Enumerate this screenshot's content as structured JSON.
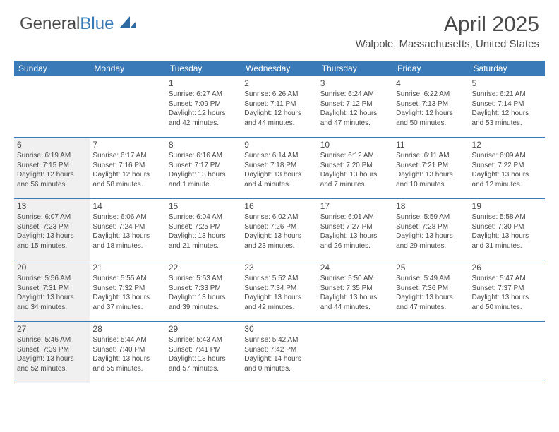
{
  "logo": {
    "part1": "General",
    "part2": "Blue"
  },
  "header": {
    "title": "April 2025",
    "location": "Walpole, Massachusetts, United States"
  },
  "colors": {
    "header_bg": "#3a7ab8",
    "header_text": "#ffffff",
    "body_text": "#4a4a4a",
    "shaded_bg": "#f0f0f0",
    "row_border": "#3a7ab8"
  },
  "day_names": [
    "Sunday",
    "Monday",
    "Tuesday",
    "Wednesday",
    "Thursday",
    "Friday",
    "Saturday"
  ],
  "weeks": [
    [
      {
        "num": "",
        "sunrise": "",
        "sunset": "",
        "daylight": "",
        "shaded": false
      },
      {
        "num": "",
        "sunrise": "",
        "sunset": "",
        "daylight": "",
        "shaded": false
      },
      {
        "num": "1",
        "sunrise": "Sunrise: 6:27 AM",
        "sunset": "Sunset: 7:09 PM",
        "daylight": "Daylight: 12 hours and 42 minutes.",
        "shaded": false
      },
      {
        "num": "2",
        "sunrise": "Sunrise: 6:26 AM",
        "sunset": "Sunset: 7:11 PM",
        "daylight": "Daylight: 12 hours and 44 minutes.",
        "shaded": false
      },
      {
        "num": "3",
        "sunrise": "Sunrise: 6:24 AM",
        "sunset": "Sunset: 7:12 PM",
        "daylight": "Daylight: 12 hours and 47 minutes.",
        "shaded": false
      },
      {
        "num": "4",
        "sunrise": "Sunrise: 6:22 AM",
        "sunset": "Sunset: 7:13 PM",
        "daylight": "Daylight: 12 hours and 50 minutes.",
        "shaded": false
      },
      {
        "num": "5",
        "sunrise": "Sunrise: 6:21 AM",
        "sunset": "Sunset: 7:14 PM",
        "daylight": "Daylight: 12 hours and 53 minutes.",
        "shaded": false
      }
    ],
    [
      {
        "num": "6",
        "sunrise": "Sunrise: 6:19 AM",
        "sunset": "Sunset: 7:15 PM",
        "daylight": "Daylight: 12 hours and 56 minutes.",
        "shaded": true
      },
      {
        "num": "7",
        "sunrise": "Sunrise: 6:17 AM",
        "sunset": "Sunset: 7:16 PM",
        "daylight": "Daylight: 12 hours and 58 minutes.",
        "shaded": false
      },
      {
        "num": "8",
        "sunrise": "Sunrise: 6:16 AM",
        "sunset": "Sunset: 7:17 PM",
        "daylight": "Daylight: 13 hours and 1 minute.",
        "shaded": false
      },
      {
        "num": "9",
        "sunrise": "Sunrise: 6:14 AM",
        "sunset": "Sunset: 7:18 PM",
        "daylight": "Daylight: 13 hours and 4 minutes.",
        "shaded": false
      },
      {
        "num": "10",
        "sunrise": "Sunrise: 6:12 AM",
        "sunset": "Sunset: 7:20 PM",
        "daylight": "Daylight: 13 hours and 7 minutes.",
        "shaded": false
      },
      {
        "num": "11",
        "sunrise": "Sunrise: 6:11 AM",
        "sunset": "Sunset: 7:21 PM",
        "daylight": "Daylight: 13 hours and 10 minutes.",
        "shaded": false
      },
      {
        "num": "12",
        "sunrise": "Sunrise: 6:09 AM",
        "sunset": "Sunset: 7:22 PM",
        "daylight": "Daylight: 13 hours and 12 minutes.",
        "shaded": false
      }
    ],
    [
      {
        "num": "13",
        "sunrise": "Sunrise: 6:07 AM",
        "sunset": "Sunset: 7:23 PM",
        "daylight": "Daylight: 13 hours and 15 minutes.",
        "shaded": true
      },
      {
        "num": "14",
        "sunrise": "Sunrise: 6:06 AM",
        "sunset": "Sunset: 7:24 PM",
        "daylight": "Daylight: 13 hours and 18 minutes.",
        "shaded": false
      },
      {
        "num": "15",
        "sunrise": "Sunrise: 6:04 AM",
        "sunset": "Sunset: 7:25 PM",
        "daylight": "Daylight: 13 hours and 21 minutes.",
        "shaded": false
      },
      {
        "num": "16",
        "sunrise": "Sunrise: 6:02 AM",
        "sunset": "Sunset: 7:26 PM",
        "daylight": "Daylight: 13 hours and 23 minutes.",
        "shaded": false
      },
      {
        "num": "17",
        "sunrise": "Sunrise: 6:01 AM",
        "sunset": "Sunset: 7:27 PM",
        "daylight": "Daylight: 13 hours and 26 minutes.",
        "shaded": false
      },
      {
        "num": "18",
        "sunrise": "Sunrise: 5:59 AM",
        "sunset": "Sunset: 7:28 PM",
        "daylight": "Daylight: 13 hours and 29 minutes.",
        "shaded": false
      },
      {
        "num": "19",
        "sunrise": "Sunrise: 5:58 AM",
        "sunset": "Sunset: 7:30 PM",
        "daylight": "Daylight: 13 hours and 31 minutes.",
        "shaded": false
      }
    ],
    [
      {
        "num": "20",
        "sunrise": "Sunrise: 5:56 AM",
        "sunset": "Sunset: 7:31 PM",
        "daylight": "Daylight: 13 hours and 34 minutes.",
        "shaded": true
      },
      {
        "num": "21",
        "sunrise": "Sunrise: 5:55 AM",
        "sunset": "Sunset: 7:32 PM",
        "daylight": "Daylight: 13 hours and 37 minutes.",
        "shaded": false
      },
      {
        "num": "22",
        "sunrise": "Sunrise: 5:53 AM",
        "sunset": "Sunset: 7:33 PM",
        "daylight": "Daylight: 13 hours and 39 minutes.",
        "shaded": false
      },
      {
        "num": "23",
        "sunrise": "Sunrise: 5:52 AM",
        "sunset": "Sunset: 7:34 PM",
        "daylight": "Daylight: 13 hours and 42 minutes.",
        "shaded": false
      },
      {
        "num": "24",
        "sunrise": "Sunrise: 5:50 AM",
        "sunset": "Sunset: 7:35 PM",
        "daylight": "Daylight: 13 hours and 44 minutes.",
        "shaded": false
      },
      {
        "num": "25",
        "sunrise": "Sunrise: 5:49 AM",
        "sunset": "Sunset: 7:36 PM",
        "daylight": "Daylight: 13 hours and 47 minutes.",
        "shaded": false
      },
      {
        "num": "26",
        "sunrise": "Sunrise: 5:47 AM",
        "sunset": "Sunset: 7:37 PM",
        "daylight": "Daylight: 13 hours and 50 minutes.",
        "shaded": false
      }
    ],
    [
      {
        "num": "27",
        "sunrise": "Sunrise: 5:46 AM",
        "sunset": "Sunset: 7:39 PM",
        "daylight": "Daylight: 13 hours and 52 minutes.",
        "shaded": true
      },
      {
        "num": "28",
        "sunrise": "Sunrise: 5:44 AM",
        "sunset": "Sunset: 7:40 PM",
        "daylight": "Daylight: 13 hours and 55 minutes.",
        "shaded": false
      },
      {
        "num": "29",
        "sunrise": "Sunrise: 5:43 AM",
        "sunset": "Sunset: 7:41 PM",
        "daylight": "Daylight: 13 hours and 57 minutes.",
        "shaded": false
      },
      {
        "num": "30",
        "sunrise": "Sunrise: 5:42 AM",
        "sunset": "Sunset: 7:42 PM",
        "daylight": "Daylight: 14 hours and 0 minutes.",
        "shaded": false
      },
      {
        "num": "",
        "sunrise": "",
        "sunset": "",
        "daylight": "",
        "shaded": false
      },
      {
        "num": "",
        "sunrise": "",
        "sunset": "",
        "daylight": "",
        "shaded": false
      },
      {
        "num": "",
        "sunrise": "",
        "sunset": "",
        "daylight": "",
        "shaded": false
      }
    ]
  ]
}
